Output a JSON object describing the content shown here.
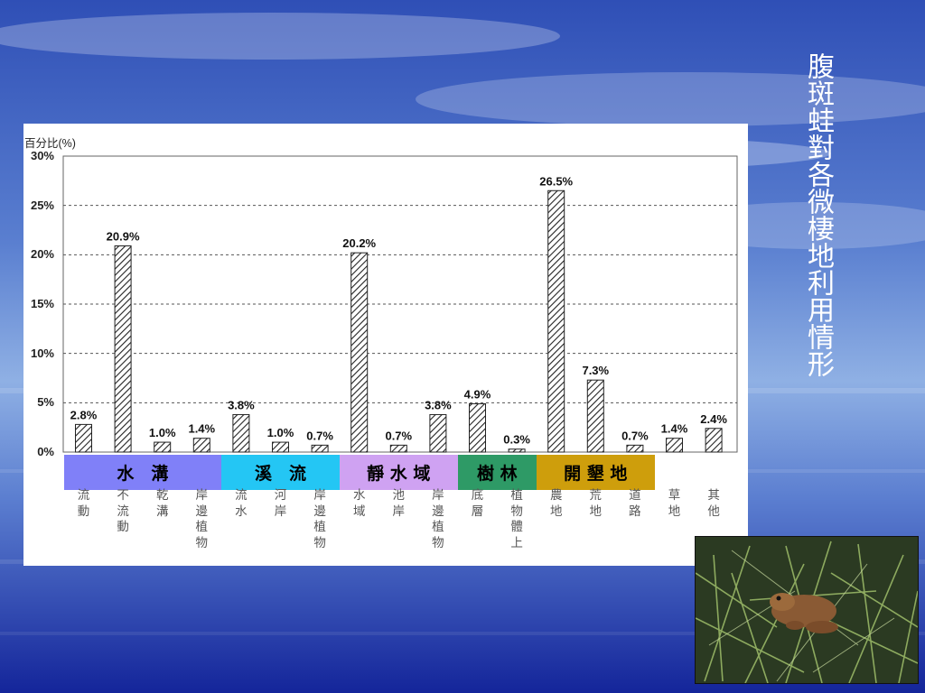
{
  "slide": {
    "title": "腹斑蛙對各微棲地利用情形"
  },
  "chart_data": {
    "type": "bar",
    "ylabel": "百分比(%)",
    "ylim": [
      0,
      30
    ],
    "yticks": [
      "0%",
      "5%",
      "10%",
      "15%",
      "20%",
      "25%",
      "30%"
    ],
    "grid": "dashed horizontal",
    "bar_pattern": "diagonal hatch",
    "categories": [
      "流動",
      "不流動",
      "乾溝",
      "岸邊植物",
      "流水",
      "河岸",
      "岸邊植物",
      "水域",
      "池岸",
      "岸邊植物",
      "底層",
      "植物體上",
      "農地",
      "荒地",
      "道路",
      "草地",
      "其他"
    ],
    "values": [
      2.8,
      20.9,
      1.0,
      1.4,
      3.8,
      1.0,
      0.7,
      20.2,
      0.7,
      3.8,
      4.9,
      0.3,
      26.5,
      7.3,
      0.7,
      1.4,
      2.4
    ],
    "data_labels": [
      "2.8%",
      "20.9%",
      "1.0%",
      "1.4%",
      "3.8%",
      "1.0%",
      "0.7%",
      "20.2%",
      "0.7%",
      "3.8%",
      "4.9%",
      "0.3%",
      "26.5%",
      "7.3%",
      "0.7%",
      "1.4%",
      "2.4%"
    ],
    "groups": [
      {
        "label": "水　溝",
        "color": "#8080f8",
        "start": 0,
        "end": 3
      },
      {
        "label": "溪　流",
        "color": "#24c6f4",
        "start": 4,
        "end": 6
      },
      {
        "label": "靜 水 域",
        "color": "#cfa2f2",
        "start": 7,
        "end": 9
      },
      {
        "label": "樹 林",
        "color": "#2e9a66",
        "start": 10,
        "end": 11
      },
      {
        "label": "開 墾 地",
        "color": "#ce9e0c",
        "start": 12,
        "end": 14
      }
    ]
  },
  "photo": {
    "subject": "frog-in-grass"
  }
}
